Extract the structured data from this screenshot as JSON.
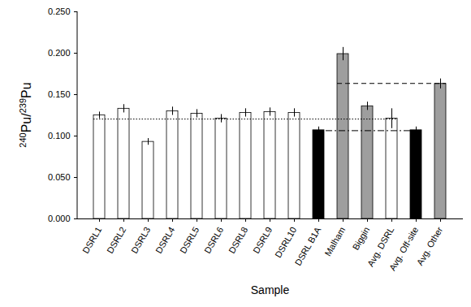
{
  "chart_data": {
    "type": "bar",
    "x_label": "Sample",
    "y_label": "240Pu/239Pu",
    "categories": [
      "DSRL1",
      "DSRL2",
      "DSRL3",
      "DSRL4",
      "DSRL5",
      "DSRL6",
      "DSRL8",
      "DSRL9",
      "DSRL10",
      "DSRL B1A",
      "Malham",
      "Biggin",
      "Avg. DSRL",
      "Avg. Off-site",
      "Avg. Other"
    ],
    "values": [
      0.125,
      0.133,
      0.093,
      0.13,
      0.127,
      0.121,
      0.128,
      0.129,
      0.128,
      0.107,
      0.199,
      0.136,
      0.121,
      0.107,
      0.163
    ],
    "errors": [
      0.004,
      0.005,
      0.004,
      0.005,
      0.005,
      0.005,
      0.005,
      0.005,
      0.005,
      0.004,
      0.008,
      0.005,
      0.012,
      0.004,
      0.006
    ],
    "colors": [
      "#ffffff",
      "#ffffff",
      "#ffffff",
      "#ffffff",
      "#ffffff",
      "#ffffff",
      "#ffffff",
      "#ffffff",
      "#ffffff",
      "#000000",
      "#9e9e9e",
      "#9e9e9e",
      "#ffffff",
      "#000000",
      "#9e9e9e"
    ],
    "reference_lines": [
      {
        "value": 0.12,
        "from": "DSRL1",
        "to": "Avg. DSRL",
        "line_style": "dotted"
      },
      {
        "value": 0.106,
        "from": "DSRL B1A",
        "to": "Avg. Off-site",
        "line_style": "dashdot"
      },
      {
        "value": 0.163,
        "from": "Malham",
        "to": "Avg. Other",
        "line_style": "dashed"
      }
    ],
    "ylim": [
      0,
      0.25
    ],
    "yticks": [
      {
        "value": 0,
        "label": "0.000"
      },
      {
        "value": 0.05,
        "label": "0.050"
      },
      {
        "value": 0.1,
        "label": "0.100"
      },
      {
        "value": 0.15,
        "label": "0.150"
      },
      {
        "value": 0.2,
        "label": "0.200"
      },
      {
        "value": 0.25,
        "label": "0.250"
      }
    ],
    "grid": false
  }
}
